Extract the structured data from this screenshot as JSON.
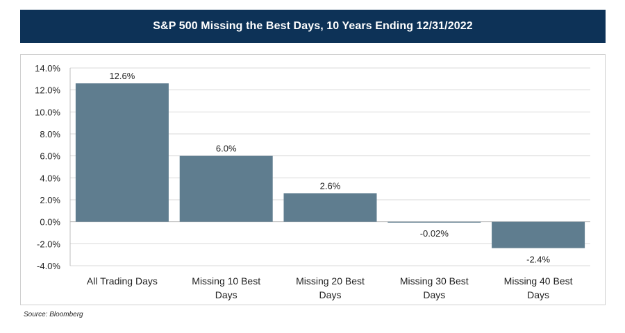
{
  "chart_data": {
    "type": "bar",
    "title": "S&P 500 Missing the Best Days, 10 Years Ending 12/31/2022",
    "categories": [
      "All Trading Days",
      "Missing 10 Best Days",
      "Missing 20 Best Days",
      "Missing 30 Best Days",
      "Missing 40 Best Days"
    ],
    "category_lines": [
      [
        "All Trading Days"
      ],
      [
        "Missing 10 Best",
        "Days"
      ],
      [
        "Missing 20 Best",
        "Days"
      ],
      [
        "Missing 30 Best",
        "Days"
      ],
      [
        "Missing 40 Best",
        "Days"
      ]
    ],
    "values": [
      12.6,
      6.0,
      2.6,
      -0.02,
      -2.4
    ],
    "data_labels": [
      "12.6%",
      "6.0%",
      "2.6%",
      "-0.02%",
      "-2.4%"
    ],
    "ylim": [
      -4.0,
      14.0
    ],
    "yticks": [
      14.0,
      12.0,
      10.0,
      8.0,
      6.0,
      4.0,
      2.0,
      0.0,
      -2.0,
      -4.0
    ],
    "ytick_labels": [
      "14.0%",
      "12.0%",
      "10.0%",
      "8.0%",
      "6.0%",
      "4.0%",
      "2.0%",
      "0.0%",
      "-2.0%",
      "-4.0%"
    ],
    "xlabel": "",
    "ylabel": "",
    "grid": true,
    "bar_color": "#5f7d8f"
  },
  "source": "Source: Bloomberg"
}
